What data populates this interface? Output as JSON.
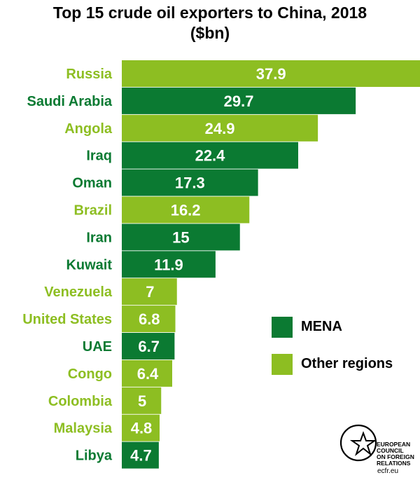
{
  "chart_data": {
    "type": "bar",
    "orientation": "horizontal",
    "title": "Top 15 crude oil exporters to China, 2018",
    "subtitle": "($bn)",
    "categories": [
      "Russia",
      "Saudi Arabia",
      "Angola",
      "Iraq",
      "Oman",
      "Brazil",
      "Iran",
      "Kuwait",
      "Venezuela",
      "United States",
      "UAE",
      "Congo",
      "Colombia",
      "Malaysia",
      "Libya"
    ],
    "values": [
      37.9,
      29.7,
      24.9,
      22.4,
      17.3,
      16.2,
      15,
      11.9,
      7,
      6.8,
      6.7,
      6.4,
      5,
      4.8,
      4.7
    ],
    "value_labels": [
      "37.9",
      "29.7",
      "24.9",
      "22.4",
      "17.3",
      "16.2",
      "15",
      "11.9",
      "7",
      "6.8",
      "6.7",
      "6.4",
      "5",
      "4.8",
      "4.7"
    ],
    "groups": [
      "Other regions",
      "MENA",
      "Other regions",
      "MENA",
      "MENA",
      "Other regions",
      "MENA",
      "MENA",
      "Other regions",
      "Other regions",
      "MENA",
      "Other regions",
      "Other regions",
      "Other regions",
      "MENA"
    ],
    "legend": [
      {
        "name": "MENA",
        "color": "#0b7a32"
      },
      {
        "name": "Other regions",
        "color": "#8dbe22"
      }
    ],
    "legend_position": "right",
    "grid": false,
    "xlabel": "",
    "ylabel": ""
  },
  "logo": {
    "org_lines": [
      "EUROPEAN",
      "COUNCIL",
      "ON FOREIGN",
      "RELATIONS"
    ],
    "url": "ecfr.eu"
  }
}
